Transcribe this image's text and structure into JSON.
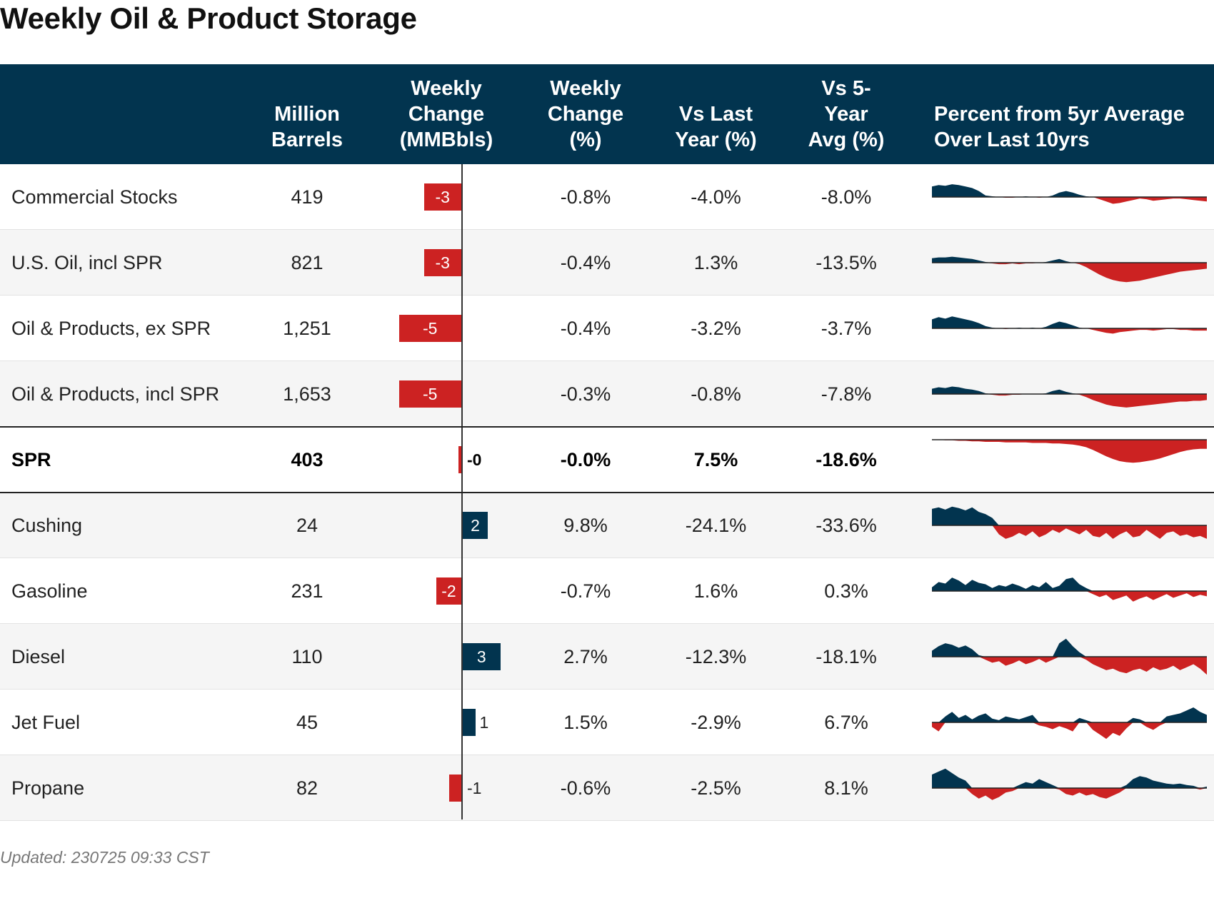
{
  "title": "Weekly Oil & Product Storage",
  "footer": "Updated: 230725 09:33 CST",
  "colors": {
    "header_bg": "#02344f",
    "positive": "#02344f",
    "negative": "#cc2222"
  },
  "columns": [
    {
      "key": "name",
      "label": ""
    },
    {
      "key": "barrels",
      "label": "Million\nBarrels"
    },
    {
      "key": "weekly_change",
      "label": "Weekly\nChange\n(MMBbls)"
    },
    {
      "key": "weekly_pct",
      "label": "Weekly\nChange\n(%)"
    },
    {
      "key": "vs_last_year",
      "label": "Vs Last\nYear (%)"
    },
    {
      "key": "vs_5yr",
      "label": "Vs 5-\nYear\nAvg (%)"
    },
    {
      "key": "sparkline",
      "label": "Percent from 5yr Average\nOver Last 10yrs"
    }
  ],
  "chart_data": {
    "type": "table",
    "bar_column": "weekly_change",
    "bar_domain": [
      -6,
      6
    ],
    "sparkline_note_ylim": [
      -40,
      40
    ],
    "rows": [
      {
        "name": "Commercial Stocks",
        "barrels": "419",
        "weekly_change": -3,
        "weekly_change_label": "-3",
        "weekly_pct": "-0.8%",
        "vs_last_year": "-4.0%",
        "vs_5yr": "-8.0%",
        "bold": false,
        "spark": [
          14,
          16,
          15,
          17,
          16,
          14,
          12,
          8,
          2,
          1,
          0,
          -1,
          -1,
          0,
          1,
          0,
          -1,
          0,
          2,
          6,
          8,
          6,
          3,
          1,
          0,
          -3,
          -6,
          -9,
          -8,
          -6,
          -4,
          -2,
          -3,
          -5,
          -4,
          -3,
          -2,
          -2,
          -3,
          -4,
          -5,
          -6
        ]
      },
      {
        "name": "U.S. Oil, incl SPR",
        "barrels": "821",
        "weekly_change": -3,
        "weekly_change_label": "-3",
        "weekly_pct": "-0.4%",
        "vs_last_year": "1.3%",
        "vs_5yr": "-13.5%",
        "bold": false,
        "spark": [
          6,
          7,
          7,
          8,
          7,
          6,
          5,
          3,
          1,
          -1,
          -2,
          -2,
          -1,
          -2,
          -1,
          -1,
          0,
          1,
          3,
          5,
          2,
          0,
          -2,
          -6,
          -11,
          -16,
          -20,
          -23,
          -25,
          -26,
          -25,
          -24,
          -22,
          -20,
          -18,
          -16,
          -14,
          -12,
          -11,
          -10,
          -9,
          -8
        ]
      },
      {
        "name": "Oil & Products, ex SPR",
        "barrels": "1,251",
        "weekly_change": -5,
        "weekly_change_label": "-5",
        "weekly_pct": "-0.4%",
        "vs_last_year": "-3.2%",
        "vs_5yr": "-3.7%",
        "bold": false,
        "spark": [
          12,
          15,
          13,
          16,
          14,
          12,
          10,
          7,
          3,
          1,
          0,
          -1,
          0,
          1,
          0,
          1,
          0,
          2,
          6,
          9,
          7,
          4,
          1,
          0,
          -2,
          -4,
          -6,
          -7,
          -5,
          -4,
          -3,
          -2,
          -2,
          -3,
          -2,
          -1,
          -1,
          -2,
          -2,
          -3,
          -3,
          -3
        ]
      },
      {
        "name": "Oil & Products, incl SPR",
        "barrels": "1,653",
        "weekly_change": -5,
        "weekly_change_label": "-5",
        "weekly_pct": "-0.3%",
        "vs_last_year": "-0.8%",
        "vs_5yr": "-7.8%",
        "bold": false,
        "spark": [
          7,
          9,
          8,
          10,
          9,
          7,
          6,
          4,
          1,
          -1,
          -2,
          -2,
          -1,
          -1,
          0,
          0,
          0,
          1,
          4,
          6,
          3,
          1,
          -1,
          -4,
          -8,
          -11,
          -14,
          -16,
          -17,
          -18,
          -17,
          -16,
          -15,
          -14,
          -13,
          -12,
          -11,
          -10,
          -10,
          -9,
          -9,
          -8
        ]
      },
      {
        "name": "SPR",
        "barrels": "403",
        "weekly_change": -0.2,
        "weekly_change_label": "-0",
        "weekly_pct": "-0.0%",
        "vs_last_year": "7.5%",
        "vs_5yr": "-18.6%",
        "bold": true,
        "spark": [
          0,
          0,
          -1,
          -1,
          -2,
          -2,
          -3,
          -3,
          -4,
          -4,
          -4,
          -5,
          -5,
          -5,
          -5,
          -6,
          -6,
          -6,
          -7,
          -7,
          -8,
          -9,
          -11,
          -14,
          -19,
          -25,
          -31,
          -36,
          -40,
          -42,
          -43,
          -42,
          -40,
          -38,
          -35,
          -31,
          -27,
          -23,
          -20,
          -18,
          -17,
          -17
        ]
      },
      {
        "name": "Cushing",
        "barrels": "24",
        "weekly_change": 2,
        "weekly_change_label": "2",
        "weekly_pct": "9.8%",
        "vs_last_year": "-24.1%",
        "vs_5yr": "-33.6%",
        "bold": false,
        "spark": [
          22,
          24,
          21,
          25,
          23,
          20,
          24,
          18,
          15,
          10,
          -12,
          -18,
          -15,
          -10,
          -14,
          -8,
          -16,
          -12,
          -6,
          -10,
          -4,
          -8,
          -12,
          -6,
          -14,
          -16,
          -10,
          -18,
          -12,
          -8,
          -16,
          -14,
          -6,
          -12,
          -18,
          -10,
          -8,
          -14,
          -12,
          -16,
          -14,
          -18
        ]
      },
      {
        "name": "Gasoline",
        "barrels": "231",
        "weekly_change": -2,
        "weekly_change_label": "-2",
        "weekly_pct": "-0.7%",
        "vs_last_year": "1.6%",
        "vs_5yr": "0.3%",
        "bold": false,
        "spark": [
          5,
          12,
          10,
          18,
          14,
          8,
          15,
          11,
          9,
          4,
          8,
          6,
          10,
          7,
          3,
          8,
          5,
          12,
          4,
          7,
          16,
          18,
          9,
          4,
          -4,
          -8,
          -5,
          -12,
          -9,
          -6,
          -14,
          -10,
          -7,
          -12,
          -8,
          -4,
          -9,
          -6,
          -3,
          -8,
          -5,
          -7
        ]
      },
      {
        "name": "Diesel",
        "barrels": "110",
        "weekly_change": 3,
        "weekly_change_label": "3",
        "weekly_pct": "2.7%",
        "vs_last_year": "-12.3%",
        "vs_5yr": "-18.1%",
        "bold": false,
        "spark": [
          8,
          14,
          18,
          16,
          12,
          15,
          10,
          2,
          -4,
          -8,
          -6,
          -12,
          -9,
          -5,
          -10,
          -7,
          -3,
          -8,
          -4,
          18,
          24,
          14,
          6,
          -4,
          -10,
          -14,
          -18,
          -16,
          -20,
          -22,
          -18,
          -16,
          -20,
          -14,
          -18,
          -16,
          -12,
          -18,
          -14,
          -10,
          -16,
          -24
        ]
      },
      {
        "name": "Jet Fuel",
        "barrels": "45",
        "weekly_change": 1,
        "weekly_change_label": "1",
        "weekly_pct": "1.5%",
        "vs_last_year": "-2.9%",
        "vs_5yr": "6.7%",
        "bold": false,
        "spark": [
          -6,
          -12,
          8,
          14,
          6,
          10,
          4,
          9,
          12,
          5,
          3,
          8,
          6,
          4,
          7,
          10,
          -4,
          -6,
          -9,
          -5,
          -8,
          -12,
          6,
          3,
          -10,
          -16,
          -22,
          -14,
          -18,
          -8,
          6,
          4,
          -6,
          -10,
          -4,
          8,
          10,
          12,
          16,
          20,
          14,
          10
        ]
      },
      {
        "name": "Propane",
        "barrels": "82",
        "weekly_change": -1,
        "weekly_change_label": "-1",
        "weekly_pct": "-0.6%",
        "vs_last_year": "-2.5%",
        "vs_5yr": "8.1%",
        "bold": false,
        "spark": [
          18,
          22,
          26,
          20,
          14,
          10,
          -8,
          -14,
          -10,
          -16,
          -12,
          -6,
          -4,
          4,
          8,
          6,
          12,
          8,
          4,
          -2,
          -8,
          -10,
          -6,
          -10,
          -8,
          -12,
          -14,
          -10,
          -6,
          4,
          12,
          16,
          14,
          10,
          8,
          6,
          5,
          6,
          4,
          3,
          -2,
          2
        ]
      }
    ]
  }
}
